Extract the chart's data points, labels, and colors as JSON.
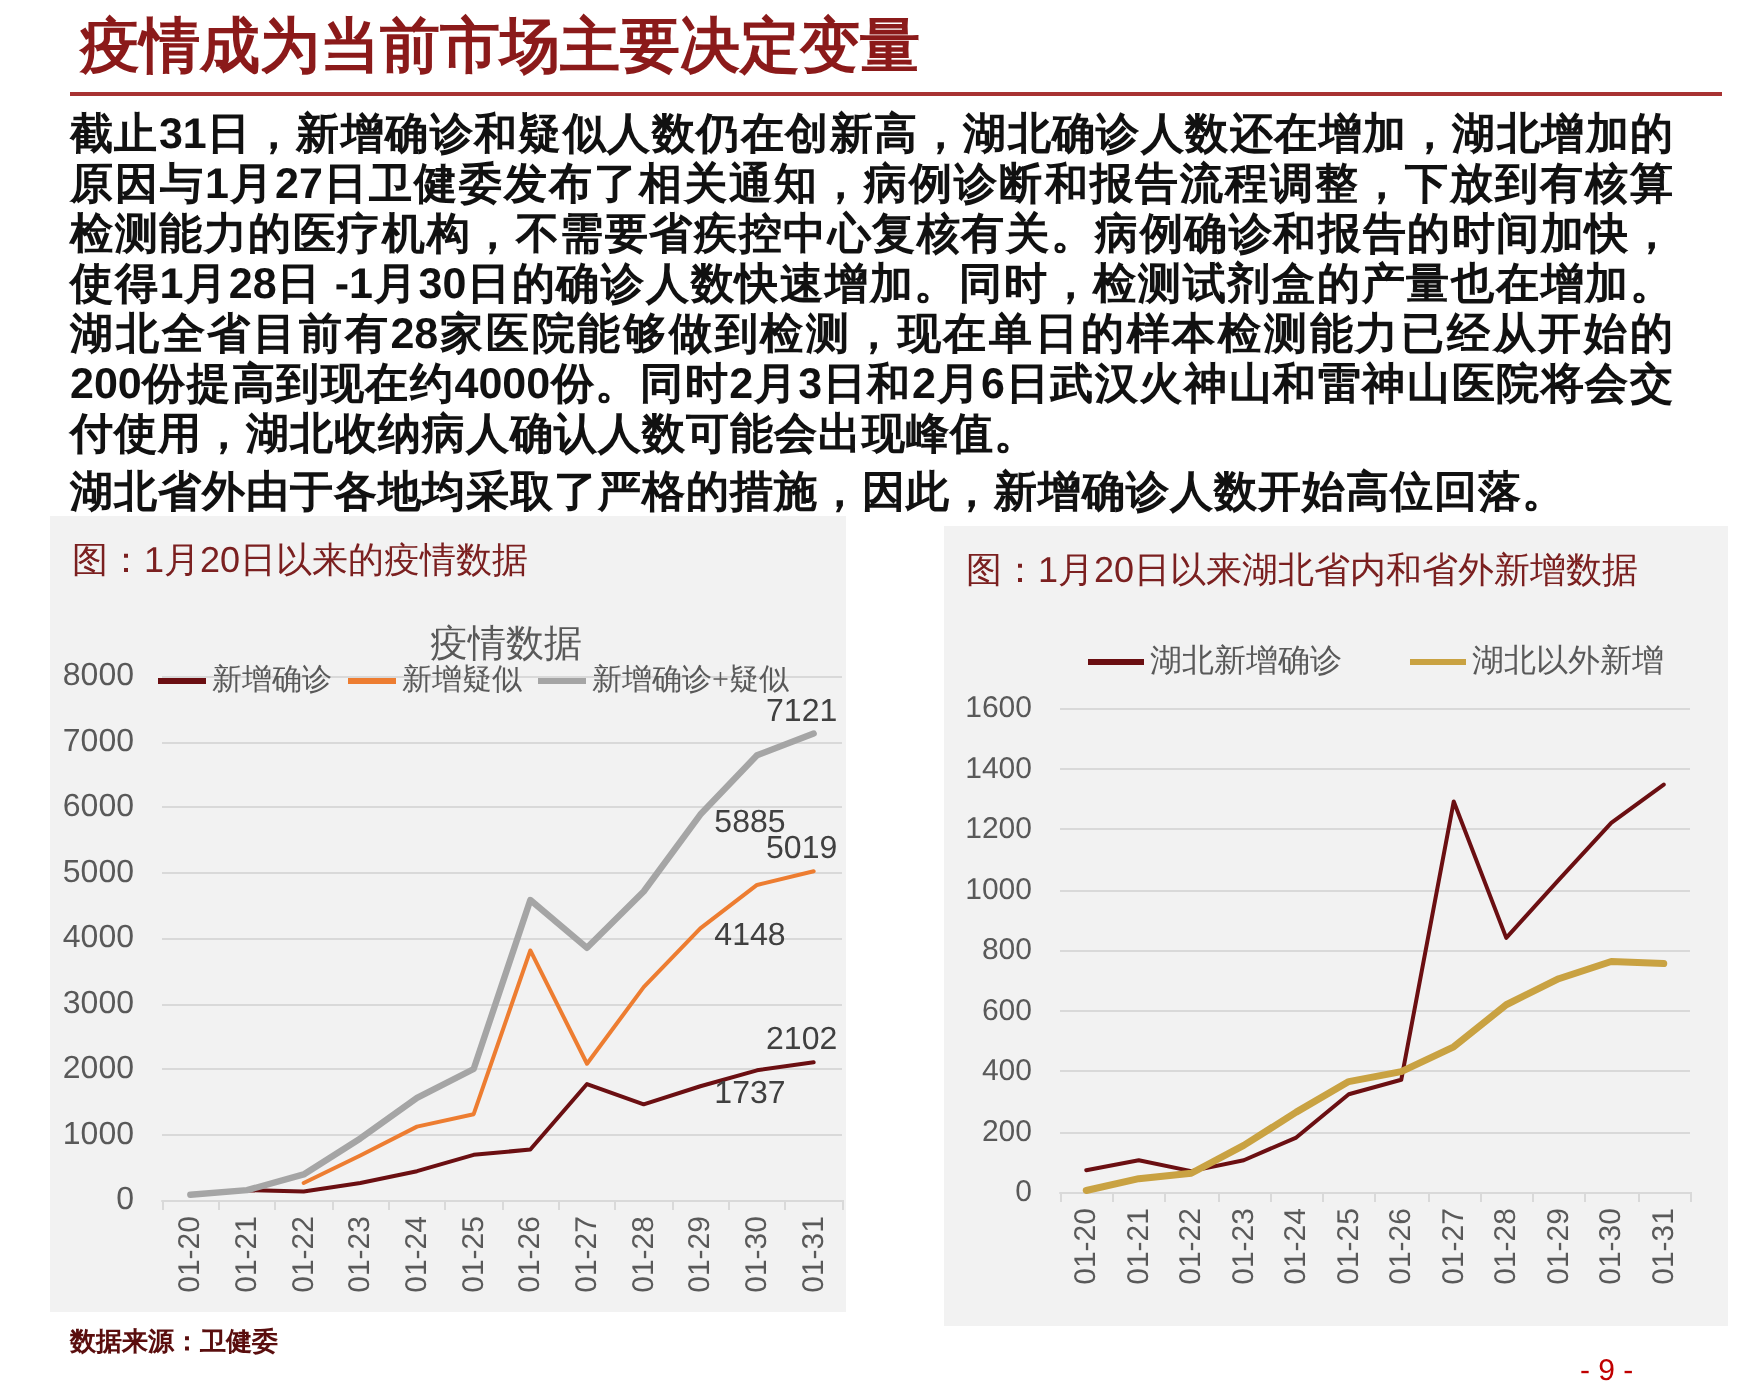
{
  "chart_data": [
    {
      "type": "other",
      "title": "疫情成为当前市场主要决定变量",
      "annotations": [
        "截止31日，新增确诊和疑似人数仍在创新高，湖北确诊人数还在增加，湖北增加的原因与1月27日卫健委发布了相关通知，病例诊断和报告流程调整，下放到有核算检测能力的医疗机构，不需要省疾控中心复核有关。病例确诊和报告的时间加快，使得1月28日 -1月30日的确诊人数快速增加。同时，检测试剂盒的产量也在增加。湖北全省目前有28家医院能够做到检测，现在单日的样本检测能力已经从开始的200份提高到现在约4000份。同时2月3日和2月6日武汉火神山和雷神山医院将会交付使用，湖北收纳病人确认人数可能会出现峰值。",
        "湖北省外由于各地均采取了严格的措施，因此，新增确诊人数开始高位回落。"
      ]
    },
    {
      "type": "line",
      "title": "图：1月20日以来的疫情数据",
      "subtitle": "疫情数据",
      "categories": [
        "01-20",
        "01-21",
        "01-22",
        "01-23",
        "01-24",
        "01-25",
        "01-26",
        "01-27",
        "01-28",
        "01-29",
        "01-30",
        "01-31"
      ],
      "series": [
        {
          "name": "新增确诊",
          "color": "#6b0f12",
          "values": [
            80,
            150,
            130,
            260,
            440,
            690,
            770,
            1770,
            1460,
            1737,
            1980,
            2102
          ],
          "value_labels": [
            null,
            null,
            null,
            null,
            null,
            null,
            null,
            null,
            null,
            "1737",
            null,
            "2102"
          ]
        },
        {
          "name": "新增疑似",
          "color": "#ed7d31",
          "values": [
            null,
            null,
            260,
            680,
            1120,
            1310,
            3810,
            2080,
            3250,
            4148,
            4810,
            5019
          ],
          "value_labels": [
            null,
            null,
            null,
            null,
            null,
            null,
            null,
            null,
            null,
            "4148",
            null,
            "5019"
          ]
        },
        {
          "name": "新增确诊+疑似",
          "color": "#a5a5a5",
          "values": [
            80,
            150,
            390,
            940,
            1560,
            2000,
            4580,
            3850,
            4710,
            5885,
            6790,
            7121
          ],
          "value_labels": [
            null,
            null,
            null,
            null,
            null,
            null,
            null,
            null,
            null,
            "5885",
            null,
            "7121"
          ]
        }
      ],
      "ylim": [
        0,
        8000
      ],
      "yticks": [
        0,
        1000,
        2000,
        3000,
        4000,
        5000,
        6000,
        7000,
        8000
      ],
      "grid": "y",
      "legend": "top",
      "marker": "none",
      "line_style": "solid",
      "annotations": [
        "数据来源：卫健委"
      ]
    },
    {
      "type": "line",
      "title": "图：1月20日以来湖北省内和省外新增数据",
      "categories": [
        "01-20",
        "01-21",
        "01-22",
        "01-23",
        "01-24",
        "01-25",
        "01-26",
        "01-27",
        "01-28",
        "01-29",
        "01-30",
        "01-31"
      ],
      "series": [
        {
          "name": "湖北新增确诊",
          "color": "#6b0f12",
          "values": [
            72,
            105,
            69,
            105,
            180,
            323,
            371,
            1291,
            840,
            1032,
            1220,
            1347
          ]
        },
        {
          "name": "湖北以外新增",
          "color": "#c9a242",
          "values": [
            5,
            44,
            62,
            154,
            264,
            365,
            398,
            480,
            619,
            705,
            762,
            755
          ]
        }
      ],
      "ylim": [
        0,
        1600
      ],
      "yticks": [
        0,
        200,
        400,
        600,
        800,
        1000,
        1200,
        1400,
        1600
      ],
      "grid": "y",
      "legend": "top",
      "marker": "none",
      "line_style": "solid",
      "annotations": [
        "- 9 -"
      ]
    }
  ]
}
